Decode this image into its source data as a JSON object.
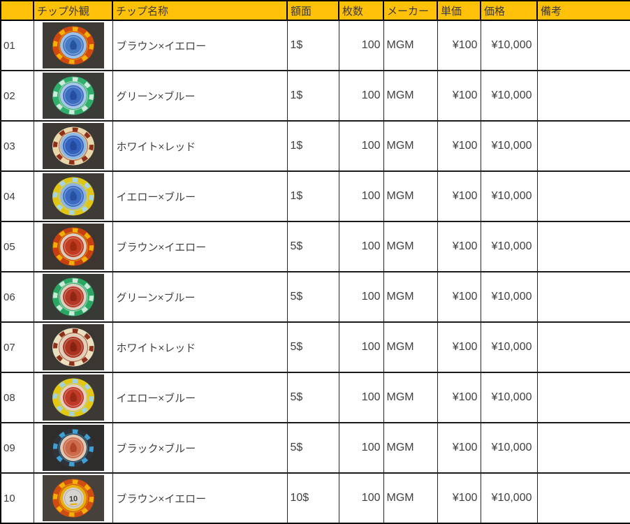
{
  "colors": {
    "header_fill": "#FFC008",
    "header_text": "#3a3a3a",
    "body_text": "#3f3f3f",
    "grid_line": "#1c1c1c"
  },
  "table": {
    "header": {
      "columns": [
        {
          "label": ""
        },
        {
          "label": "チップ外観"
        },
        {
          "label": "チップ名称"
        },
        {
          "label": "額面"
        },
        {
          "label": "枚数"
        },
        {
          "label": "メーカー"
        },
        {
          "label": "単価"
        },
        {
          "label": "価格"
        },
        {
          "label": "備考"
        }
      ]
    },
    "rows": [
      {
        "no": "01",
        "name": "ブラウン×イエロー",
        "denomination": "1$",
        "quantity": "100",
        "maker": "MGM",
        "unit_price": "¥100",
        "price": "¥10,000",
        "remarks": "",
        "chip": {
          "photo_bg": "#3e3a35",
          "outer": "#d0490f",
          "spots": "#f2b009",
          "mid": "#9fc2e4",
          "center": "#4579c2",
          "detail": "#27529f",
          "label": ""
        }
      },
      {
        "no": "02",
        "name": "グリーン×ブルー",
        "denomination": "1$",
        "quantity": "100",
        "maker": "MGM",
        "unit_price": "¥100",
        "price": "¥10,000",
        "remarks": "",
        "chip": {
          "photo_bg": "#3a3c38",
          "outer": "#2fae6c",
          "spots": "#cfeadd",
          "mid": "#a8c6e6",
          "center": "#3b6cc0",
          "detail": "#264da0",
          "label": ""
        }
      },
      {
        "no": "03",
        "name": "ホワイト×レッド",
        "denomination": "1$",
        "quantity": "100",
        "maker": "MGM",
        "unit_price": "¥100",
        "price": "¥10,000",
        "remarks": "",
        "chip": {
          "photo_bg": "#3c3834",
          "outer": "#e9d8ac",
          "spots": "#8e2f1b",
          "mid": "#8fb8e2",
          "center": "#3262bd",
          "detail": "#234a9c",
          "label": ""
        }
      },
      {
        "no": "04",
        "name": "イエロー×ブルー",
        "denomination": "1$",
        "quantity": "100",
        "maker": "MGM",
        "unit_price": "¥100",
        "price": "¥10,000",
        "remarks": "",
        "chip": {
          "photo_bg": "#3e3a35",
          "outer": "#e2c414",
          "spots": "#a5d6e8",
          "mid": "#90b4e0",
          "center": "#3b6cc2",
          "detail": "#27509f",
          "label": ""
        }
      },
      {
        "no": "05",
        "name": "ブラウン×イエロー",
        "denomination": "5$",
        "quantity": "100",
        "maker": "MGM",
        "unit_price": "¥100",
        "price": "¥10,000",
        "remarks": "",
        "chip": {
          "photo_bg": "#3c3530",
          "outer": "#c84012",
          "spots": "#f0ae08",
          "mid": "#d9cec0",
          "center": "#c23b1f",
          "detail": "#9e2a10",
          "label": ""
        }
      },
      {
        "no": "06",
        "name": "グリーン×ブルー",
        "denomination": "5$",
        "quantity": "100",
        "maker": "MGM",
        "unit_price": "¥100",
        "price": "¥10,000",
        "remarks": "",
        "chip": {
          "photo_bg": "#383a36",
          "outer": "#2aa763",
          "spots": "#cde9da",
          "mid": "#dccfc0",
          "center": "#b53826",
          "detail": "#8f2715",
          "label": ""
        }
      },
      {
        "no": "07",
        "name": "ホワイト×レッド",
        "denomination": "5$",
        "quantity": "100",
        "maker": "MGM",
        "unit_price": "¥100",
        "price": "¥10,000",
        "remarks": "",
        "chip": {
          "photo_bg": "#3a3632",
          "outer": "#eadfc0",
          "spots": "#8e2f1b",
          "mid": "#e0cdbb",
          "center": "#aa3420",
          "detail": "#852312",
          "label": ""
        }
      },
      {
        "no": "08",
        "name": "イエロー×ブルー",
        "denomination": "5$",
        "quantity": "100",
        "maker": "MGM",
        "unit_price": "¥100",
        "price": "¥10,000",
        "remarks": "",
        "chip": {
          "photo_bg": "#3c3833",
          "outer": "#e5c713",
          "spots": "#a0d2e0",
          "mid": "#e5cfc5",
          "center": "#c03a28",
          "detail": "#992a16",
          "label": ""
        }
      },
      {
        "no": "09",
        "name": "ブラック×ブルー",
        "denomination": "5$",
        "quantity": "100",
        "maker": "MGM",
        "unit_price": "¥100",
        "price": "¥10,000",
        "remarks": "",
        "chip": {
          "photo_bg": "#2f2d2b",
          "outer": "#2f3238",
          "spots": "#3fa0d6",
          "mid": "#dec8b6",
          "center": "#cd6c4c",
          "detail": "#b04527",
          "label": ""
        }
      },
      {
        "no": "10",
        "name": "ブラウン×イエロー",
        "denomination": "10$",
        "quantity": "100",
        "maker": "MGM",
        "unit_price": "¥100",
        "price": "¥10,000",
        "remarks": "",
        "chip": {
          "photo_bg": "#46413b",
          "outer": "#d14c10",
          "spots": "#f2b009",
          "mid": "#e6b011",
          "center": "#d7d3ce",
          "detail": "#3c3c3c",
          "label": "10"
        }
      }
    ]
  }
}
